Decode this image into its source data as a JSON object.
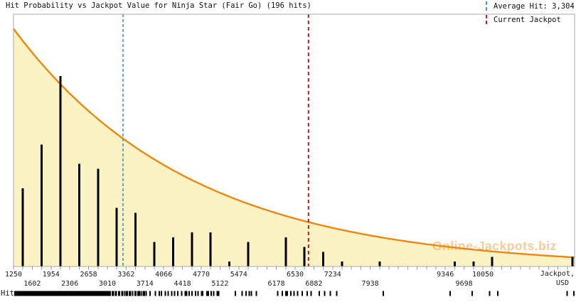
{
  "title": "Hit Probability vs Jackpot Value for Ninja Star (Fair Go) (196 hits)",
  "legend": {
    "items": [
      {
        "label": "Average Hit: 3,304",
        "color": "#3E96C4"
      },
      {
        "label": "Current Jackpot",
        "color": "#B42025"
      }
    ]
  },
  "watermark": {
    "text": "Online-Jackpots.biz",
    "color": "rgba(243,158,66,0.55)"
  },
  "x_axis": {
    "corner_label_line1": "Jackpot,",
    "corner_label_line2": "USD"
  },
  "rug": {
    "label": "Hits:"
  },
  "colors": {
    "background": "#FFFFFF",
    "fill_under_curve": "#FCF3C5",
    "curve": "#ED8712",
    "bar": "#000000",
    "average_line": "#3E96C4",
    "current_line": "#B42025",
    "border": "#A9A9A9",
    "tick": "#999999",
    "label": "#1C1C1C"
  },
  "chart_data": {
    "type": "bar",
    "title": "Hit Probability vs Jackpot Value for Ninja Star (Fair Go) (196 hits)",
    "xlabel": "Jackpot, USD",
    "ylabel": "Hit Probability",
    "total_hits": 196,
    "x_range": [
      1250,
      11770
    ],
    "bin_width": 352,
    "tick_step": 176,
    "visible_x_labels": [
      1250,
      1602,
      1954,
      2306,
      2658,
      3010,
      3362,
      3714,
      4066,
      4418,
      4770,
      5122,
      5474,
      6178,
      6530,
      6882,
      7234,
      7938,
      9346,
      9698,
      10050
    ],
    "categories": [
      1426,
      1778,
      2130,
      2482,
      2834,
      3186,
      3538,
      3890,
      4242,
      4594,
      4946,
      5298,
      5650,
      6354,
      6706,
      7058,
      7410,
      8114,
      9522,
      9874,
      10226,
      11730
    ],
    "values": [
      16,
      25,
      39,
      21,
      20,
      12,
      11,
      5,
      6,
      7,
      7,
      1,
      5,
      6,
      4,
      3,
      1,
      1,
      1,
      1,
      2,
      2
    ],
    "series_note": "values are hit counts per jackpot bin; rug strip at bottom marks individual hits",
    "average_hit": 3304,
    "current_jackpot": 6780,
    "curve": {
      "type": "exponential_decay",
      "x_start": 1250,
      "decay_scale": 3333
    },
    "legend_position": "top-right",
    "grid": false
  }
}
